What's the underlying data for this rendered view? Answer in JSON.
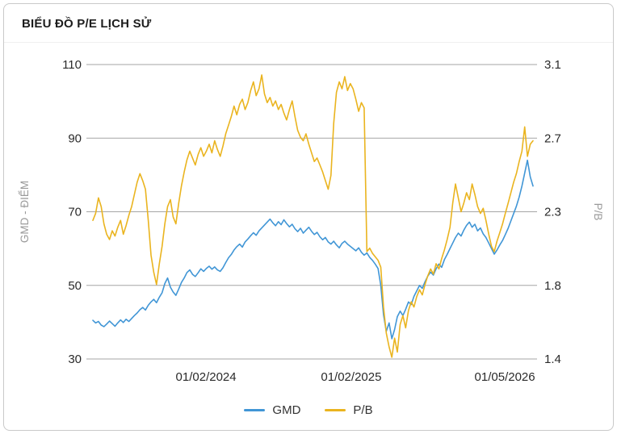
{
  "header": {
    "title": "BIỂU ĐỒ P/E LỊCH SỬ"
  },
  "chart_data": {
    "type": "line",
    "title": "BIỂU ĐỒ P/E LỊCH SỬ",
    "grid": "horizontal",
    "grid_color": "#a6a6a6",
    "plot_background": "#ffffff",
    "left_axis": {
      "label": "GMD - ĐIỂM",
      "min": 30,
      "max": 110,
      "ticks": [
        110,
        90,
        70,
        50,
        30
      ]
    },
    "right_axis": {
      "label": "P/B",
      "min": 1.4,
      "max": 3.1,
      "ticks": [
        3.1,
        2.7,
        2.3,
        1.8,
        1.4
      ]
    },
    "x_axis": {
      "tick_labels": [
        "01/02/2024",
        "01/02/2025",
        "01/05/2026"
      ],
      "tick_positions": [
        0.257,
        0.587,
        0.936
      ]
    },
    "legend": {
      "position": "bottom",
      "entries": [
        {
          "name": "GMD",
          "color": "#4196d6"
        },
        {
          "name": "P/B",
          "color": "#eab41f"
        }
      ]
    },
    "series": [
      {
        "name": "GMD",
        "axis": "left",
        "color": "#4196d6",
        "values": [
          40.5,
          39.8,
          40.2,
          39.2,
          38.8,
          39.5,
          40.3,
          39.6,
          38.9,
          39.8,
          40.6,
          39.9,
          40.8,
          40.2,
          41.0,
          41.8,
          42.5,
          43.4,
          44.0,
          43.3,
          44.6,
          45.5,
          46.2,
          45.3,
          46.8,
          48.0,
          50.5,
          52.0,
          49.5,
          48.2,
          47.3,
          49.0,
          50.8,
          52.0,
          53.5,
          54.2,
          53.0,
          52.4,
          53.4,
          54.5,
          53.8,
          54.6,
          55.2,
          54.4,
          55.0,
          54.2,
          53.8,
          54.8,
          56.2,
          57.5,
          58.4,
          59.6,
          60.5,
          61.2,
          60.4,
          61.8,
          62.6,
          63.5,
          64.3,
          63.6,
          64.8,
          65.6,
          66.4,
          67.2,
          68.0,
          67.0,
          66.2,
          67.3,
          66.5,
          67.8,
          66.8,
          65.9,
          66.6,
          65.4,
          64.6,
          65.5,
          64.2,
          65.0,
          65.8,
          64.7,
          63.8,
          64.4,
          63.2,
          62.4,
          63.0,
          61.8,
          61.2,
          62.0,
          61.0,
          60.2,
          61.4,
          62.0,
          61.2,
          60.6,
          60.0,
          59.4,
          60.2,
          59.0,
          58.2,
          58.8,
          57.6,
          56.8,
          55.8,
          54.6,
          50.0,
          42.0,
          37.5,
          39.8,
          35.5,
          38.0,
          41.5,
          43.0,
          41.8,
          43.5,
          45.5,
          44.8,
          47.0,
          48.5,
          50.0,
          49.2,
          51.0,
          52.5,
          53.6,
          52.8,
          54.5,
          55.8,
          54.9,
          57.0,
          58.4,
          60.0,
          61.5,
          63.0,
          64.2,
          63.4,
          65.0,
          66.3,
          67.2,
          65.8,
          66.6,
          64.8,
          65.6,
          64.0,
          63.0,
          61.5,
          60.0,
          58.5,
          59.6,
          61.0,
          62.2,
          63.8,
          65.5,
          67.5,
          69.5,
          71.5,
          74.0,
          77.0,
          80.5,
          84.0,
          79.5,
          77.0
        ]
      },
      {
        "name": "P/B",
        "axis": "right",
        "color": "#eab41f",
        "values": [
          2.2,
          2.24,
          2.33,
          2.28,
          2.18,
          2.12,
          2.09,
          2.14,
          2.11,
          2.16,
          2.2,
          2.12,
          2.17,
          2.23,
          2.28,
          2.35,
          2.42,
          2.47,
          2.43,
          2.38,
          2.2,
          2.0,
          1.9,
          1.83,
          1.95,
          2.05,
          2.18,
          2.28,
          2.32,
          2.22,
          2.18,
          2.3,
          2.4,
          2.48,
          2.55,
          2.6,
          2.56,
          2.52,
          2.58,
          2.62,
          2.57,
          2.6,
          2.64,
          2.59,
          2.66,
          2.61,
          2.57,
          2.63,
          2.7,
          2.75,
          2.8,
          2.86,
          2.81,
          2.87,
          2.9,
          2.84,
          2.88,
          2.95,
          3.0,
          2.92,
          2.96,
          3.04,
          2.93,
          2.88,
          2.91,
          2.86,
          2.89,
          2.84,
          2.87,
          2.82,
          2.78,
          2.84,
          2.89,
          2.8,
          2.72,
          2.68,
          2.66,
          2.7,
          2.64,
          2.59,
          2.54,
          2.56,
          2.52,
          2.48,
          2.43,
          2.38,
          2.46,
          2.76,
          2.94,
          3.0,
          2.96,
          3.03,
          2.95,
          2.99,
          2.96,
          2.9,
          2.83,
          2.88,
          2.85,
          2.02,
          2.04,
          2.01,
          1.99,
          1.97,
          1.93,
          1.7,
          1.55,
          1.47,
          1.41,
          1.52,
          1.44,
          1.6,
          1.65,
          1.58,
          1.68,
          1.73,
          1.7,
          1.76,
          1.8,
          1.77,
          1.83,
          1.88,
          1.92,
          1.89,
          1.95,
          1.92,
          1.98,
          2.03,
          2.09,
          2.16,
          2.3,
          2.41,
          2.33,
          2.25,
          2.3,
          2.36,
          2.32,
          2.41,
          2.35,
          2.28,
          2.24,
          2.27,
          2.2,
          2.12,
          2.05,
          2.02,
          2.08,
          2.13,
          2.18,
          2.24,
          2.3,
          2.36,
          2.42,
          2.47,
          2.54,
          2.6,
          2.74,
          2.57,
          2.64,
          2.66
        ]
      }
    ]
  }
}
